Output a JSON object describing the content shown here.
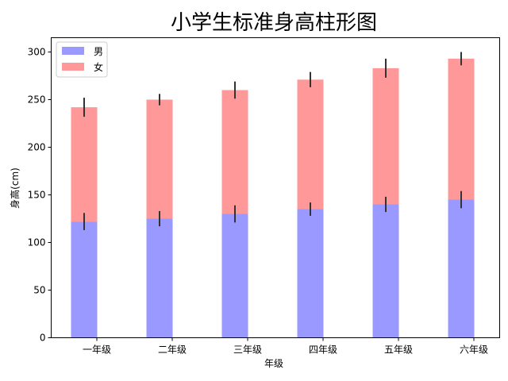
{
  "chart_data": {
    "type": "bar",
    "stacked": true,
    "title": "小学生标准身高柱形图",
    "xlabel": "年级",
    "ylabel": "身高(cm)",
    "categories": [
      "一年级",
      "二年级",
      "三年级",
      "四年级",
      "五年级",
      "六年级"
    ],
    "series": [
      {
        "name": "男",
        "color": "#9999ff",
        "values": [
          122,
          125,
          130,
          135,
          140,
          145
        ],
        "errors": [
          9,
          8,
          9,
          7,
          8,
          9
        ]
      },
      {
        "name": "女",
        "color": "#ff9999",
        "values": [
          120,
          125,
          130,
          136,
          143,
          148
        ],
        "errors": [
          10,
          6,
          9,
          8,
          10,
          7
        ]
      }
    ],
    "ylim": [
      0,
      315
    ],
    "yticks": [
      0,
      50,
      100,
      150,
      200,
      250,
      300
    ],
    "grid": false,
    "legend_position": "top-left",
    "error_color": "#333333"
  }
}
